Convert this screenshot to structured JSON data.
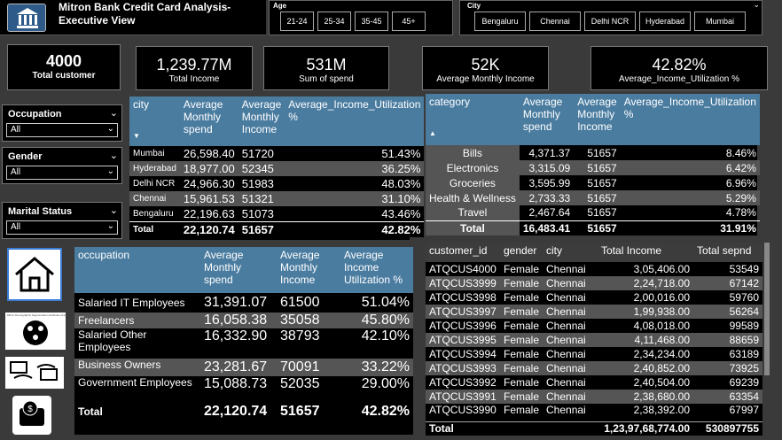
{
  "header": {
    "title_line1": "Mitron Bank Credit Card Analysis-",
    "title_line2": "Executive View"
  },
  "age_slicer": {
    "title": "Age",
    "options": [
      "21-24",
      "25-34",
      "35-45",
      "45+"
    ]
  },
  "city_slicer": {
    "title": "City",
    "options": [
      "Bengaluru",
      "Chennai",
      "Delhi NCR",
      "Hyderabad",
      "Mumbai"
    ]
  },
  "kpis": [
    {
      "value": "4000",
      "label": "Total customer"
    },
    {
      "value": "1,239.77M",
      "label": "Total Income"
    },
    {
      "value": "531M",
      "label": "Sum of spend"
    },
    {
      "value": "52K",
      "label": "Average  Monthly Income"
    },
    {
      "value": "42.82%",
      "label": "Average_Income_Utilization %"
    }
  ],
  "filters": [
    {
      "title": "Occupation",
      "value": "All"
    },
    {
      "title": "Gender",
      "value": "All"
    },
    {
      "title": "Marital Status",
      "value": "All"
    }
  ],
  "city_table": {
    "headers": [
      "city",
      "Average Monthly spend",
      "Average Monthly Income",
      "Average_Income_Utilization %"
    ],
    "rows": [
      [
        "Mumbai",
        "26,598.40",
        "51720",
        "51.43%"
      ],
      [
        "Hyderabad",
        "18,977.00",
        "52345",
        "36.25%"
      ],
      [
        "Delhi NCR",
        "24,966.30",
        "51983",
        "48.03%"
      ],
      [
        "Chennai",
        "15,961.53",
        "51321",
        "31.10%"
      ],
      [
        "Bengaluru",
        "22,196.63",
        "51073",
        "43.46%"
      ]
    ],
    "total": [
      "Total",
      "22,120.74",
      "51657",
      "42.82%"
    ]
  },
  "category_table": {
    "headers": [
      "category",
      "Average Monthly spend",
      "Average Monthly Income",
      "Average_Income_Utilization %"
    ],
    "rows": [
      [
        "Bills",
        "4,371.37",
        "51657",
        "8.46%"
      ],
      [
        "Electronics",
        "3,315.09",
        "51657",
        "6.42%"
      ],
      [
        "Groceries",
        "3,595.99",
        "51657",
        "6.96%"
      ],
      [
        "Health & Wellness",
        "2,733.33",
        "51657",
        "5.29%"
      ],
      [
        "Travel",
        "2,467.64",
        "51657",
        "4.78%"
      ]
    ],
    "total": [
      "Total",
      "16,483.41",
      "51657",
      "31.91%"
    ]
  },
  "occupation_table": {
    "headers": [
      "occupation",
      "Average Monthly spend",
      "Average Monthly Income",
      "Average Income Utilization %"
    ],
    "rows": [
      [
        "Salaried IT Employees",
        "31,391.07",
        "61500",
        "51.04%"
      ],
      [
        "Freelancers",
        "16,058.38",
        "35058",
        "45.80%"
      ],
      [
        "Salaried Other Employees",
        "16,332.90",
        "38793",
        "42.10%"
      ],
      [
        "Business Owners",
        "23,281.67",
        "70091",
        "33.22%"
      ],
      [
        "Government Employees",
        "15,088.73",
        "52035",
        "29.00%"
      ]
    ],
    "total": [
      "Total",
      "22,120.74",
      "51657",
      "42.82%"
    ]
  },
  "customer_table": {
    "headers": [
      "customer_id",
      "gender",
      "city",
      "Total Income",
      "Total sepnd"
    ],
    "rows": [
      [
        "ATQCUS4000",
        "Female",
        "Chennai",
        "3,05,406.00",
        "53549"
      ],
      [
        "ATQCUS3999",
        "Female",
        "Chennai",
        "2,24,718.00",
        "67142"
      ],
      [
        "ATQCUS3998",
        "Female",
        "Chennai",
        "2,00,016.00",
        "59760"
      ],
      [
        "ATQCUS3997",
        "Female",
        "Chennai",
        "1,99,938.00",
        "56264"
      ],
      [
        "ATQCUS3996",
        "Female",
        "Chennai",
        "4,08,018.00",
        "99589"
      ],
      [
        "ATQCUS3995",
        "Female",
        "Chennai",
        "4,11,468.00",
        "88659"
      ],
      [
        "ATQCUS3994",
        "Female",
        "Chennai",
        "2,34,234.00",
        "63189"
      ],
      [
        "ATQCUS3993",
        "Female",
        "Chennai",
        "2,40,852.00",
        "73925"
      ],
      [
        "ATQCUS3992",
        "Female",
        "Chennai",
        "2,40,504.00",
        "69239"
      ],
      [
        "ATQCUS3991",
        "Female",
        "Chennai",
        "2,38,680.00",
        "63354"
      ],
      [
        "ATQCUS3990",
        "Female",
        "Chennai",
        "2,38,392.00",
        "67997"
      ]
    ],
    "total": [
      "Total",
      "",
      "",
      "1,23,97,68,774.00",
      "530897755"
    ]
  },
  "nav_icons": [
    "home-icon",
    "demographic-icon",
    "payment-icon",
    "wallet-icon"
  ],
  "nav_icon_caption": "Mitron Demographic Segmentation Attributes (24)"
}
